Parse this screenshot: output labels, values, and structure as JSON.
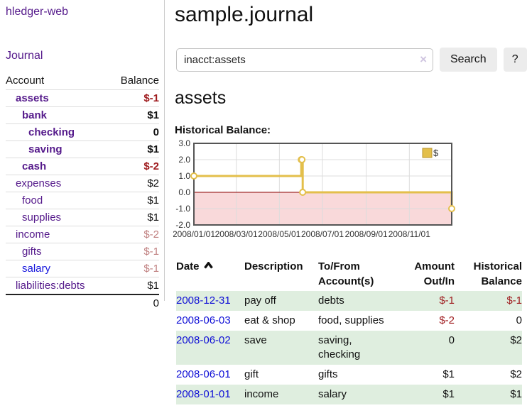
{
  "app": {
    "brand": "hledger-web",
    "nav": [
      {
        "label": "Journal"
      }
    ]
  },
  "sidebar": {
    "header": {
      "account": "Account",
      "balance": "Balance"
    },
    "accounts": [
      {
        "name": "assets",
        "balance": "$-1",
        "indent": 1,
        "bold": true,
        "neg": "strong",
        "color": "purple"
      },
      {
        "name": "bank",
        "balance": "$1",
        "indent": 2,
        "bold": true,
        "neg": "none",
        "color": "purple"
      },
      {
        "name": "checking",
        "balance": "0",
        "indent": 3,
        "bold": true,
        "neg": "none",
        "color": "purple"
      },
      {
        "name": "saving",
        "balance": "$1",
        "indent": 3,
        "bold": true,
        "neg": "none",
        "color": "purple"
      },
      {
        "name": "cash",
        "balance": "$-2",
        "indent": 2,
        "bold": true,
        "neg": "strong",
        "color": "purple"
      },
      {
        "name": "expenses",
        "balance": "$2",
        "indent": 1,
        "bold": false,
        "neg": "none",
        "color": "purple"
      },
      {
        "name": "food",
        "balance": "$1",
        "indent": 2,
        "bold": false,
        "neg": "none",
        "color": "purple"
      },
      {
        "name": "supplies",
        "balance": "$1",
        "indent": 2,
        "bold": false,
        "neg": "none",
        "color": "purple"
      },
      {
        "name": "income",
        "balance": "$-2",
        "indent": 1,
        "bold": false,
        "neg": "muted",
        "color": "purple"
      },
      {
        "name": "gifts",
        "balance": "$-1",
        "indent": 2,
        "bold": false,
        "neg": "muted",
        "color": "purple"
      },
      {
        "name": "salary",
        "balance": "$-1",
        "indent": 2,
        "bold": false,
        "neg": "muted",
        "color": "blue"
      },
      {
        "name": "liabilities:debts",
        "balance": "$1",
        "indent": 1,
        "bold": false,
        "neg": "none",
        "color": "purple"
      }
    ],
    "total": "0"
  },
  "main": {
    "title": "sample.journal",
    "search": {
      "value": "inacct:assets",
      "clear_icon": "×",
      "button_label": "Search",
      "help_label": "?"
    },
    "account_heading": "assets",
    "chart_title": "Historical Balance:"
  },
  "register": {
    "headers": {
      "date": "Date",
      "description": "Description",
      "accounts": "To/From Account(s)",
      "amount": "Amount Out/In",
      "balance": "Historical Balance"
    },
    "rows": [
      {
        "date": "2008-12-31",
        "description": "pay off",
        "accounts": "debts",
        "amount": "$-1",
        "balance": "$-1"
      },
      {
        "date": "2008-06-03",
        "description": "eat & shop",
        "accounts": "food, supplies",
        "amount": "$-2",
        "balance": "0"
      },
      {
        "date": "2008-06-02",
        "description": "save",
        "accounts": "saving, checking",
        "amount": "0",
        "balance": "$2"
      },
      {
        "date": "2008-06-01",
        "description": "gift",
        "accounts": "gifts",
        "amount": "$1",
        "balance": "$2"
      },
      {
        "date": "2008-01-01",
        "description": "income",
        "accounts": "salary",
        "amount": "$1",
        "balance": "$1"
      }
    ]
  },
  "chart_data": {
    "type": "line",
    "title": "Historical Balance:",
    "series": [
      {
        "name": "$",
        "step": "after",
        "points": [
          {
            "date": "2008-01-01",
            "value": 1
          },
          {
            "date": "2008-06-01",
            "value": 2
          },
          {
            "date": "2008-06-02",
            "value": 2
          },
          {
            "date": "2008-06-03",
            "value": 0
          },
          {
            "date": "2008-12-31",
            "value": -1
          }
        ]
      }
    ],
    "x_domain": [
      "2008-01-01",
      "2008-12-31"
    ],
    "x_ticks": [
      {
        "date": "2008-01-01",
        "label": "2008/01/01"
      },
      {
        "date": "2008-03-01",
        "label": "2008/03/01"
      },
      {
        "date": "2008-05-01",
        "label": "2008/05/01"
      },
      {
        "date": "2008-07-01",
        "label": "2008/07/01"
      },
      {
        "date": "2008-09-01",
        "label": "2008/09/01"
      },
      {
        "date": "2008-11-01",
        "label": "2008/11/01"
      }
    ],
    "y_ticks": [
      3.0,
      2.0,
      1.0,
      0.0,
      -1.0,
      -2.0
    ],
    "ylim": [
      -2,
      3
    ],
    "grid": true,
    "legend": {
      "position": "top-right",
      "label": "$"
    }
  },
  "colors": {
    "link_purple": "#551a8b",
    "link_blue": "#1515dd",
    "negative_strong": "#9e1a1d",
    "negative_muted": "#c08080",
    "row_stripe_green": "#dfeedf",
    "chart_line": "#e3bf4b",
    "chart_legend_border": "#b8962e",
    "chart_negative_fill": "#f9d9da",
    "chart_zero_line": "#8b0000",
    "chart_grid": "#dcdcdc",
    "chart_border": "#555555",
    "chart_label": "#333333"
  }
}
